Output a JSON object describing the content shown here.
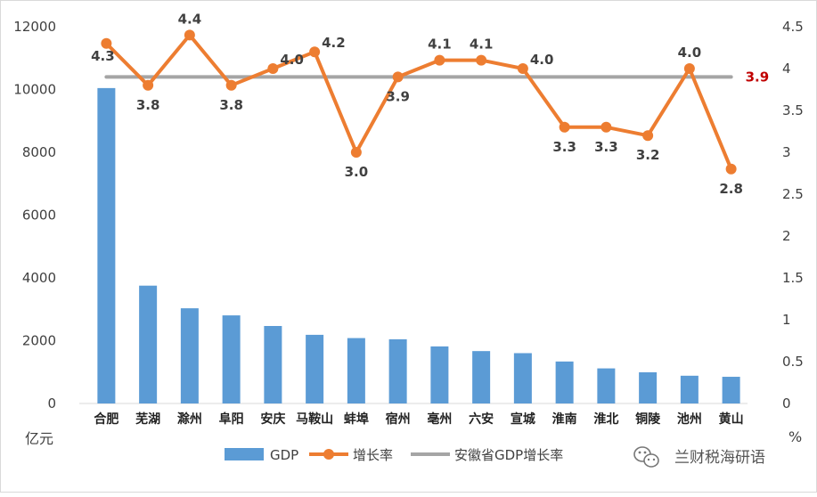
{
  "chart_data": {
    "type": "bar+line",
    "categories": [
      "合肥",
      "芜湖",
      "滁州",
      "阜阳",
      "安庆",
      "马鞍山",
      "蚌埠",
      "宿州",
      "亳州",
      "六安",
      "宣城",
      "淮南",
      "淮北",
      "铜陵",
      "池州",
      "黄山"
    ],
    "series": [
      {
        "name": "GDP",
        "type": "bar",
        "axis": "left",
        "color": "#5b9bd5",
        "values": [
          10046,
          3753,
          3032,
          2806,
          2468,
          2187,
          2083,
          2045,
          1817,
          1669,
          1603,
          1337,
          1118,
          993,
          884,
          850
        ]
      },
      {
        "name": "增长率",
        "type": "line",
        "axis": "right",
        "color": "#ed7d31",
        "values": [
          4.3,
          3.8,
          4.4,
          3.8,
          4.0,
          4.2,
          3.0,
          3.9,
          4.1,
          4.1,
          4.0,
          3.3,
          3.3,
          3.2,
          4.0,
          2.8
        ],
        "labels": [
          "4.3",
          "3.8",
          "4.4",
          "3.8",
          "4.0",
          "4.2",
          "3.0",
          "3.9",
          "4.1",
          "4.1",
          "4.0",
          "3.3",
          "3.3",
          "3.2",
          "4.0",
          "2.8"
        ]
      },
      {
        "name": "安徽省GDP增长率",
        "type": "line",
        "axis": "right",
        "color": "#a5a5a5",
        "value": 3.9,
        "label": "3.9",
        "label_color": "#c00000"
      }
    ],
    "y_left": {
      "min": 0,
      "max": 12000,
      "ticks": [
        "0",
        "2000",
        "4000",
        "6000",
        "8000",
        "10000",
        "12000"
      ],
      "unit": "亿元"
    },
    "y_right": {
      "min": 0,
      "max": 4.5,
      "ticks": [
        "0",
        "0.5",
        "1",
        "1.5",
        "2",
        "2.5",
        "3",
        "3.5",
        "4",
        "4.5"
      ],
      "unit": "%"
    },
    "grid": false,
    "legend": {
      "placement": "bottom"
    }
  },
  "watermark": {
    "text": "兰财税海研语",
    "icon": "wechat-icon"
  }
}
